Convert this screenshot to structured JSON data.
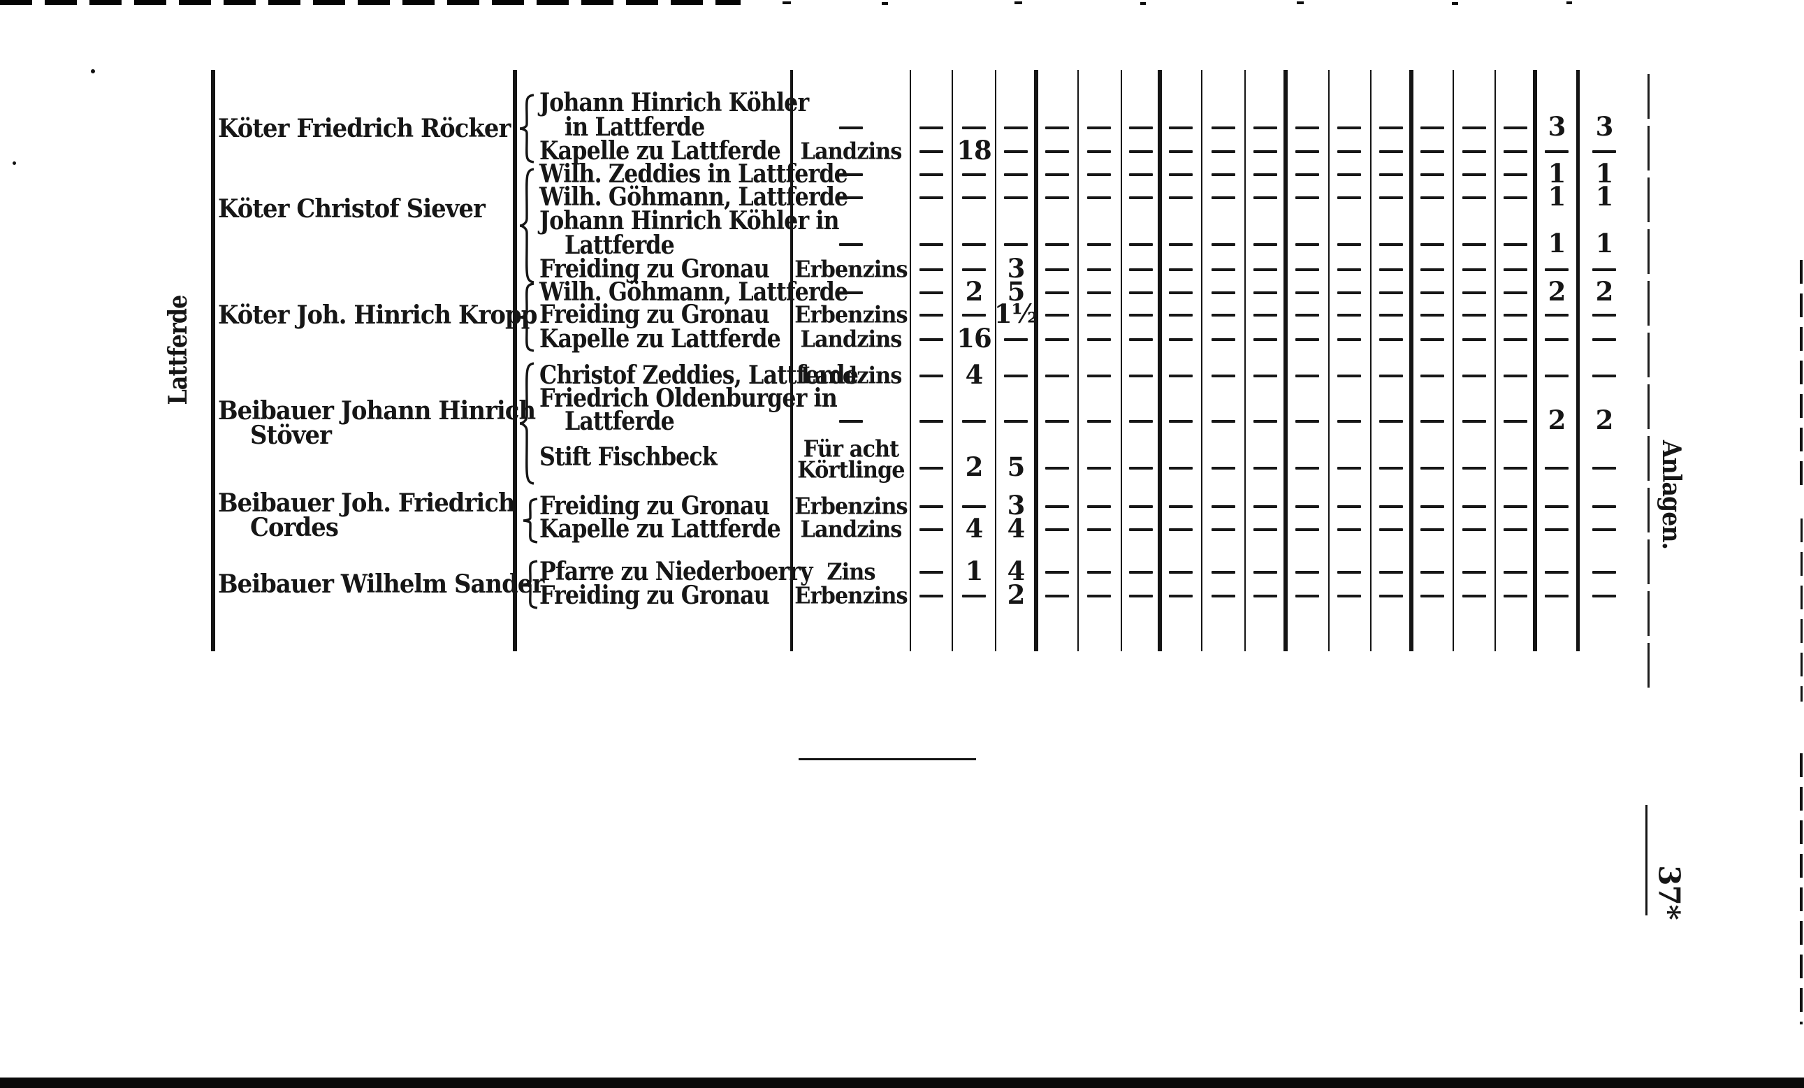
{
  "page": {
    "ink": "#161616",
    "paper": "#ffffff"
  },
  "margins": {
    "left_label": "Lattferde",
    "right_label": "Anlagen.",
    "page_number": "37*"
  },
  "table": {
    "owners": [
      {
        "lines": [
          "Köter Friedrich Röcker"
        ]
      },
      {
        "lines": [
          "Köter Christof Siever"
        ]
      },
      {
        "lines": [
          "Köter Joh. Hinrich Kropp"
        ]
      },
      {
        "lines": [
          "Beibauer Johann Hinrich",
          "Stöver"
        ]
      },
      {
        "lines": [
          "Beibauer Joh. Friedrich",
          "Cordes"
        ]
      },
      {
        "lines": [
          "Beibauer Wilhelm Sander"
        ]
      }
    ],
    "rows": [
      {
        "recipient": [
          "Johann Hinrich Köhler",
          "in Lattferde"
        ],
        "type": [
          "—"
        ],
        "money": [
          "—",
          "—",
          "—"
        ],
        "anlagen": [
          "3",
          "3"
        ]
      },
      {
        "recipient": [
          "Kapelle zu Lattferde"
        ],
        "type": [
          "Landzins"
        ],
        "money": [
          "—",
          "18",
          "—"
        ],
        "anlagen": [
          "—",
          "—"
        ]
      },
      {
        "recipient": [
          "Wilh. Zeddies in Lattferde"
        ],
        "type": [
          "—"
        ],
        "money": [
          "—",
          "—",
          "—"
        ],
        "anlagen": [
          "1",
          "1"
        ]
      },
      {
        "recipient": [
          "Wilh. Göhmann, Lattferde"
        ],
        "type": [
          "—"
        ],
        "money": [
          "—",
          "—",
          "—"
        ],
        "anlagen": [
          "1",
          "1"
        ]
      },
      {
        "recipient": [
          "Johann Hinrich Köhler in",
          "Lattferde"
        ],
        "type": [
          "—"
        ],
        "money": [
          "—",
          "—",
          "—"
        ],
        "anlagen": [
          "1",
          "1"
        ]
      },
      {
        "recipient": [
          "Freiding zu Gronau"
        ],
        "type": [
          "Erbenzins"
        ],
        "money": [
          "—",
          "—",
          "3"
        ],
        "anlagen": [
          "—",
          "—"
        ]
      },
      {
        "recipient": [
          "Wilh. Göhmann, Lattferde"
        ],
        "type": [
          "—"
        ],
        "money": [
          "—",
          "2",
          "5"
        ],
        "anlagen": [
          "2",
          "2"
        ]
      },
      {
        "recipient": [
          "Freiding zu Gronau"
        ],
        "type": [
          "Erbenzins"
        ],
        "money": [
          "—",
          "—",
          "1½"
        ],
        "anlagen": [
          "—",
          "—"
        ]
      },
      {
        "recipient": [
          "Kapelle zu Lattferde"
        ],
        "type": [
          "Landzins"
        ],
        "money": [
          "—",
          "16",
          "—"
        ],
        "anlagen": [
          "—",
          "—"
        ]
      },
      {
        "recipient": [
          "Christof Zeddies, Lattferde"
        ],
        "type": [
          "Landzins"
        ],
        "money": [
          "—",
          "4",
          "—"
        ],
        "anlagen": [
          "—",
          "—"
        ]
      },
      {
        "recipient": [
          "Friedrich Oldenburger in",
          "Lattferde"
        ],
        "type": [
          "—"
        ],
        "money": [
          "—",
          "—",
          "—"
        ],
        "anlagen": [
          "2",
          "2"
        ]
      },
      {
        "recipient": [
          "Stift Fischbeck"
        ],
        "type": [
          "Für acht",
          "Körtlinge"
        ],
        "money": [
          "—",
          "2",
          "5"
        ],
        "anlagen": [
          "—",
          "—"
        ]
      },
      {
        "recipient": [
          "Freiding zu Gronau"
        ],
        "type": [
          "Erbenzins"
        ],
        "money": [
          "—",
          "—",
          "3"
        ],
        "anlagen": [
          "—",
          "—"
        ]
      },
      {
        "recipient": [
          "Kapelle zu Lattferde"
        ],
        "type": [
          "Landzins"
        ],
        "money": [
          "—",
          "4",
          "4"
        ],
        "anlagen": [
          "—",
          "—"
        ]
      },
      {
        "recipient": [
          "Pfarre zu Niederboerry"
        ],
        "type": [
          "Zins"
        ],
        "money": [
          "—",
          "1",
          "4"
        ],
        "anlagen": [
          "—",
          "—"
        ]
      },
      {
        "recipient": [
          "Freiding zu Gronau"
        ],
        "type": [
          "Erbenzins"
        ],
        "money": [
          "—",
          "—",
          "2"
        ],
        "anlagen": [
          "—",
          "—"
        ]
      }
    ]
  }
}
